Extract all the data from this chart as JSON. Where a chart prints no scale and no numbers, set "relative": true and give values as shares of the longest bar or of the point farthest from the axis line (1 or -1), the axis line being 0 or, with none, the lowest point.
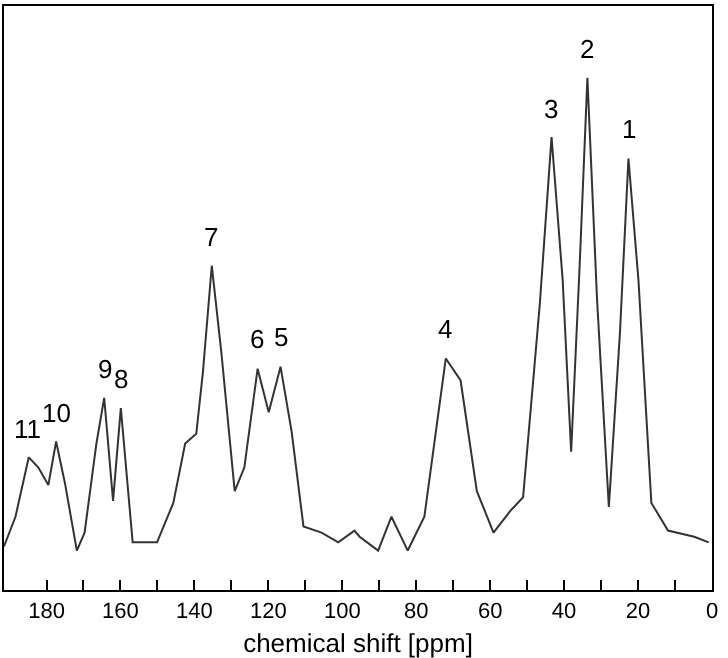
{
  "chart_data": {
    "type": "line",
    "xlabel": "chemical shift [ppm]",
    "relative": true,
    "marker": "none",
    "line_style": "solid",
    "xlim": [
      191.5,
      0
    ],
    "xticks": [
      180,
      {
        "value": 170,
        "label": null
      },
      160,
      {
        "value": 150,
        "label": null
      },
      140,
      {
        "value": 130,
        "label": null
      },
      120,
      {
        "value": 110,
        "label": null
      },
      100,
      {
        "value": 90,
        "label": null
      },
      80,
      {
        "value": 70,
        "label": null
      },
      60,
      {
        "value": 50,
        "label": null
      },
      40,
      {
        "value": 30,
        "label": null
      },
      20,
      {
        "value": 10,
        "label": null
      },
      0
    ],
    "x": [
      191.5,
      188.4,
      184.8,
      182.2,
      179.5,
      177.4,
      175.0,
      171.8,
      169.7,
      166.5,
      164.4,
      162.0,
      159.9,
      156.7,
      150.1,
      145.7,
      142.5,
      139.5,
      137.7,
      135.3,
      132.7,
      129.1,
      126.5,
      122.9,
      119.9,
      116.7,
      113.7,
      110.5,
      105.6,
      101.1,
      96.7,
      95.3,
      90.3,
      86.7,
      82.3,
      77.8,
      72.0,
      68.0,
      63.6,
      59.1,
      54.6,
      51.1,
      46.6,
      43.4,
      40.4,
      38.1,
      35.8,
      33.7,
      31.1,
      27.9,
      24.9,
      22.6,
      19.9,
      16.4,
      11.9,
      4.8,
      0.9
    ],
    "series": [
      {
        "color": "#333333",
        "values": [
          0.085,
          0.143,
          0.259,
          0.239,
          0.205,
          0.29,
          0.208,
          0.077,
          0.112,
          0.286,
          0.375,
          0.174,
          0.355,
          0.093,
          0.093,
          0.17,
          0.286,
          0.305,
          0.425,
          0.633,
          0.463,
          0.193,
          0.239,
          0.432,
          0.347,
          0.436,
          0.309,
          0.124,
          0.112,
          0.093,
          0.116,
          0.104,
          0.077,
          0.143,
          0.077,
          0.143,
          0.452,
          0.409,
          0.193,
          0.112,
          0.154,
          0.181,
          0.556,
          0.884,
          0.606,
          0.27,
          0.633,
          1.0,
          0.568,
          0.162,
          0.502,
          0.842,
          0.606,
          0.17,
          0.116,
          0.104,
          0.093
        ]
      }
    ],
    "annotations": [
      {
        "text": "1",
        "x": 22.6,
        "y": 0.842
      },
      {
        "text": "2",
        "x": 33.7,
        "y": 1.0
      },
      {
        "text": "3",
        "x": 43.4,
        "y": 0.884
      },
      {
        "text": "4",
        "x": 72.0,
        "y": 0.452
      },
      {
        "text": "5",
        "x": 116.7,
        "y": 0.436
      },
      {
        "text": "6",
        "x": 122.9,
        "y": 0.432
      },
      {
        "text": "7",
        "x": 135.3,
        "y": 0.633
      },
      {
        "text": "8",
        "x": 159.9,
        "y": 0.355
      },
      {
        "text": "9",
        "x": 164.4,
        "y": 0.375
      },
      {
        "text": "10",
        "x": 177.4,
        "y": 0.29
      },
      {
        "text": "11",
        "x": 184.8,
        "y": 0.259
      }
    ]
  }
}
